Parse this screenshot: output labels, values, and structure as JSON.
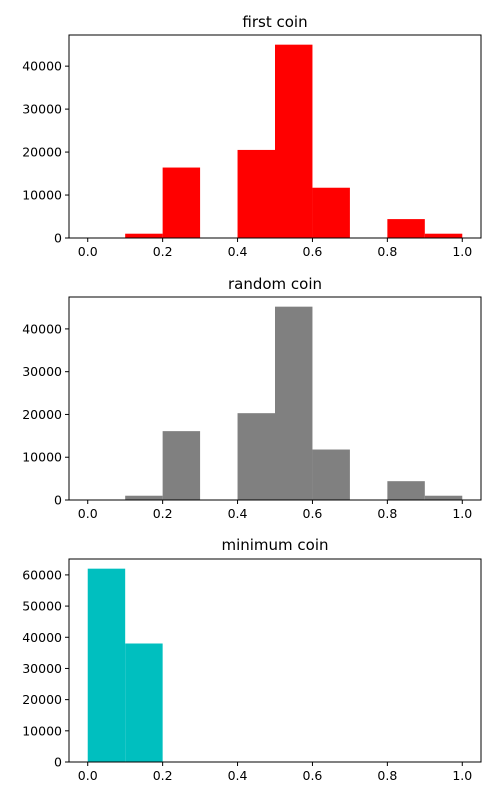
{
  "chart_data": [
    {
      "type": "bar",
      "title": "first coin",
      "color": "#ff0000",
      "bin_edges": [
        0.0,
        0.1,
        0.2,
        0.3,
        0.4,
        0.5,
        0.6,
        0.7,
        0.8,
        0.9,
        1.0
      ],
      "values": [
        100,
        1000,
        16400,
        0,
        20500,
        45000,
        11700,
        0,
        4400,
        1000
      ],
      "xlim": [
        -0.05,
        1.05
      ],
      "ylim": [
        0,
        47250
      ],
      "xticks": [
        0.0,
        0.2,
        0.4,
        0.6,
        0.8,
        1.0
      ],
      "xtick_labels": [
        "0.0",
        "0.2",
        "0.4",
        "0.6",
        "0.8",
        "1.0"
      ],
      "yticks": [
        0,
        10000,
        20000,
        30000,
        40000
      ],
      "ytick_labels": [
        "0",
        "10000",
        "20000",
        "30000",
        "40000"
      ],
      "grid": false
    },
    {
      "type": "bar",
      "title": "random coin",
      "color": "#808080",
      "bin_edges": [
        0.0,
        0.1,
        0.2,
        0.3,
        0.4,
        0.5,
        0.6,
        0.7,
        0.8,
        0.9,
        1.0
      ],
      "values": [
        100,
        1000,
        16100,
        0,
        20300,
        45200,
        11800,
        0,
        4400,
        1000
      ],
      "xlim": [
        -0.05,
        1.05
      ],
      "ylim": [
        0,
        47460
      ],
      "xticks": [
        0.0,
        0.2,
        0.4,
        0.6,
        0.8,
        1.0
      ],
      "xtick_labels": [
        "0.0",
        "0.2",
        "0.4",
        "0.6",
        "0.8",
        "1.0"
      ],
      "yticks": [
        0,
        10000,
        20000,
        30000,
        40000
      ],
      "ytick_labels": [
        "0",
        "10000",
        "20000",
        "30000",
        "40000"
      ],
      "grid": false
    },
    {
      "type": "bar",
      "title": "minimum coin",
      "color": "#00bfbf",
      "bin_edges": [
        0.0,
        0.1,
        0.2,
        0.3,
        0.4,
        0.5,
        0.6,
        0.7,
        0.8,
        0.9,
        1.0
      ],
      "values": [
        62000,
        38000,
        0,
        0,
        0,
        0,
        0,
        0,
        0,
        0
      ],
      "xlim": [
        -0.05,
        1.05
      ],
      "ylim": [
        0,
        65100
      ],
      "xticks": [
        0.0,
        0.2,
        0.4,
        0.6,
        0.8,
        1.0
      ],
      "xtick_labels": [
        "0.0",
        "0.2",
        "0.4",
        "0.6",
        "0.8",
        "1.0"
      ],
      "yticks": [
        0,
        10000,
        20000,
        30000,
        40000,
        50000,
        60000
      ],
      "ytick_labels": [
        "0",
        "10000",
        "20000",
        "30000",
        "40000",
        "50000",
        "60000"
      ],
      "grid": false
    }
  ]
}
